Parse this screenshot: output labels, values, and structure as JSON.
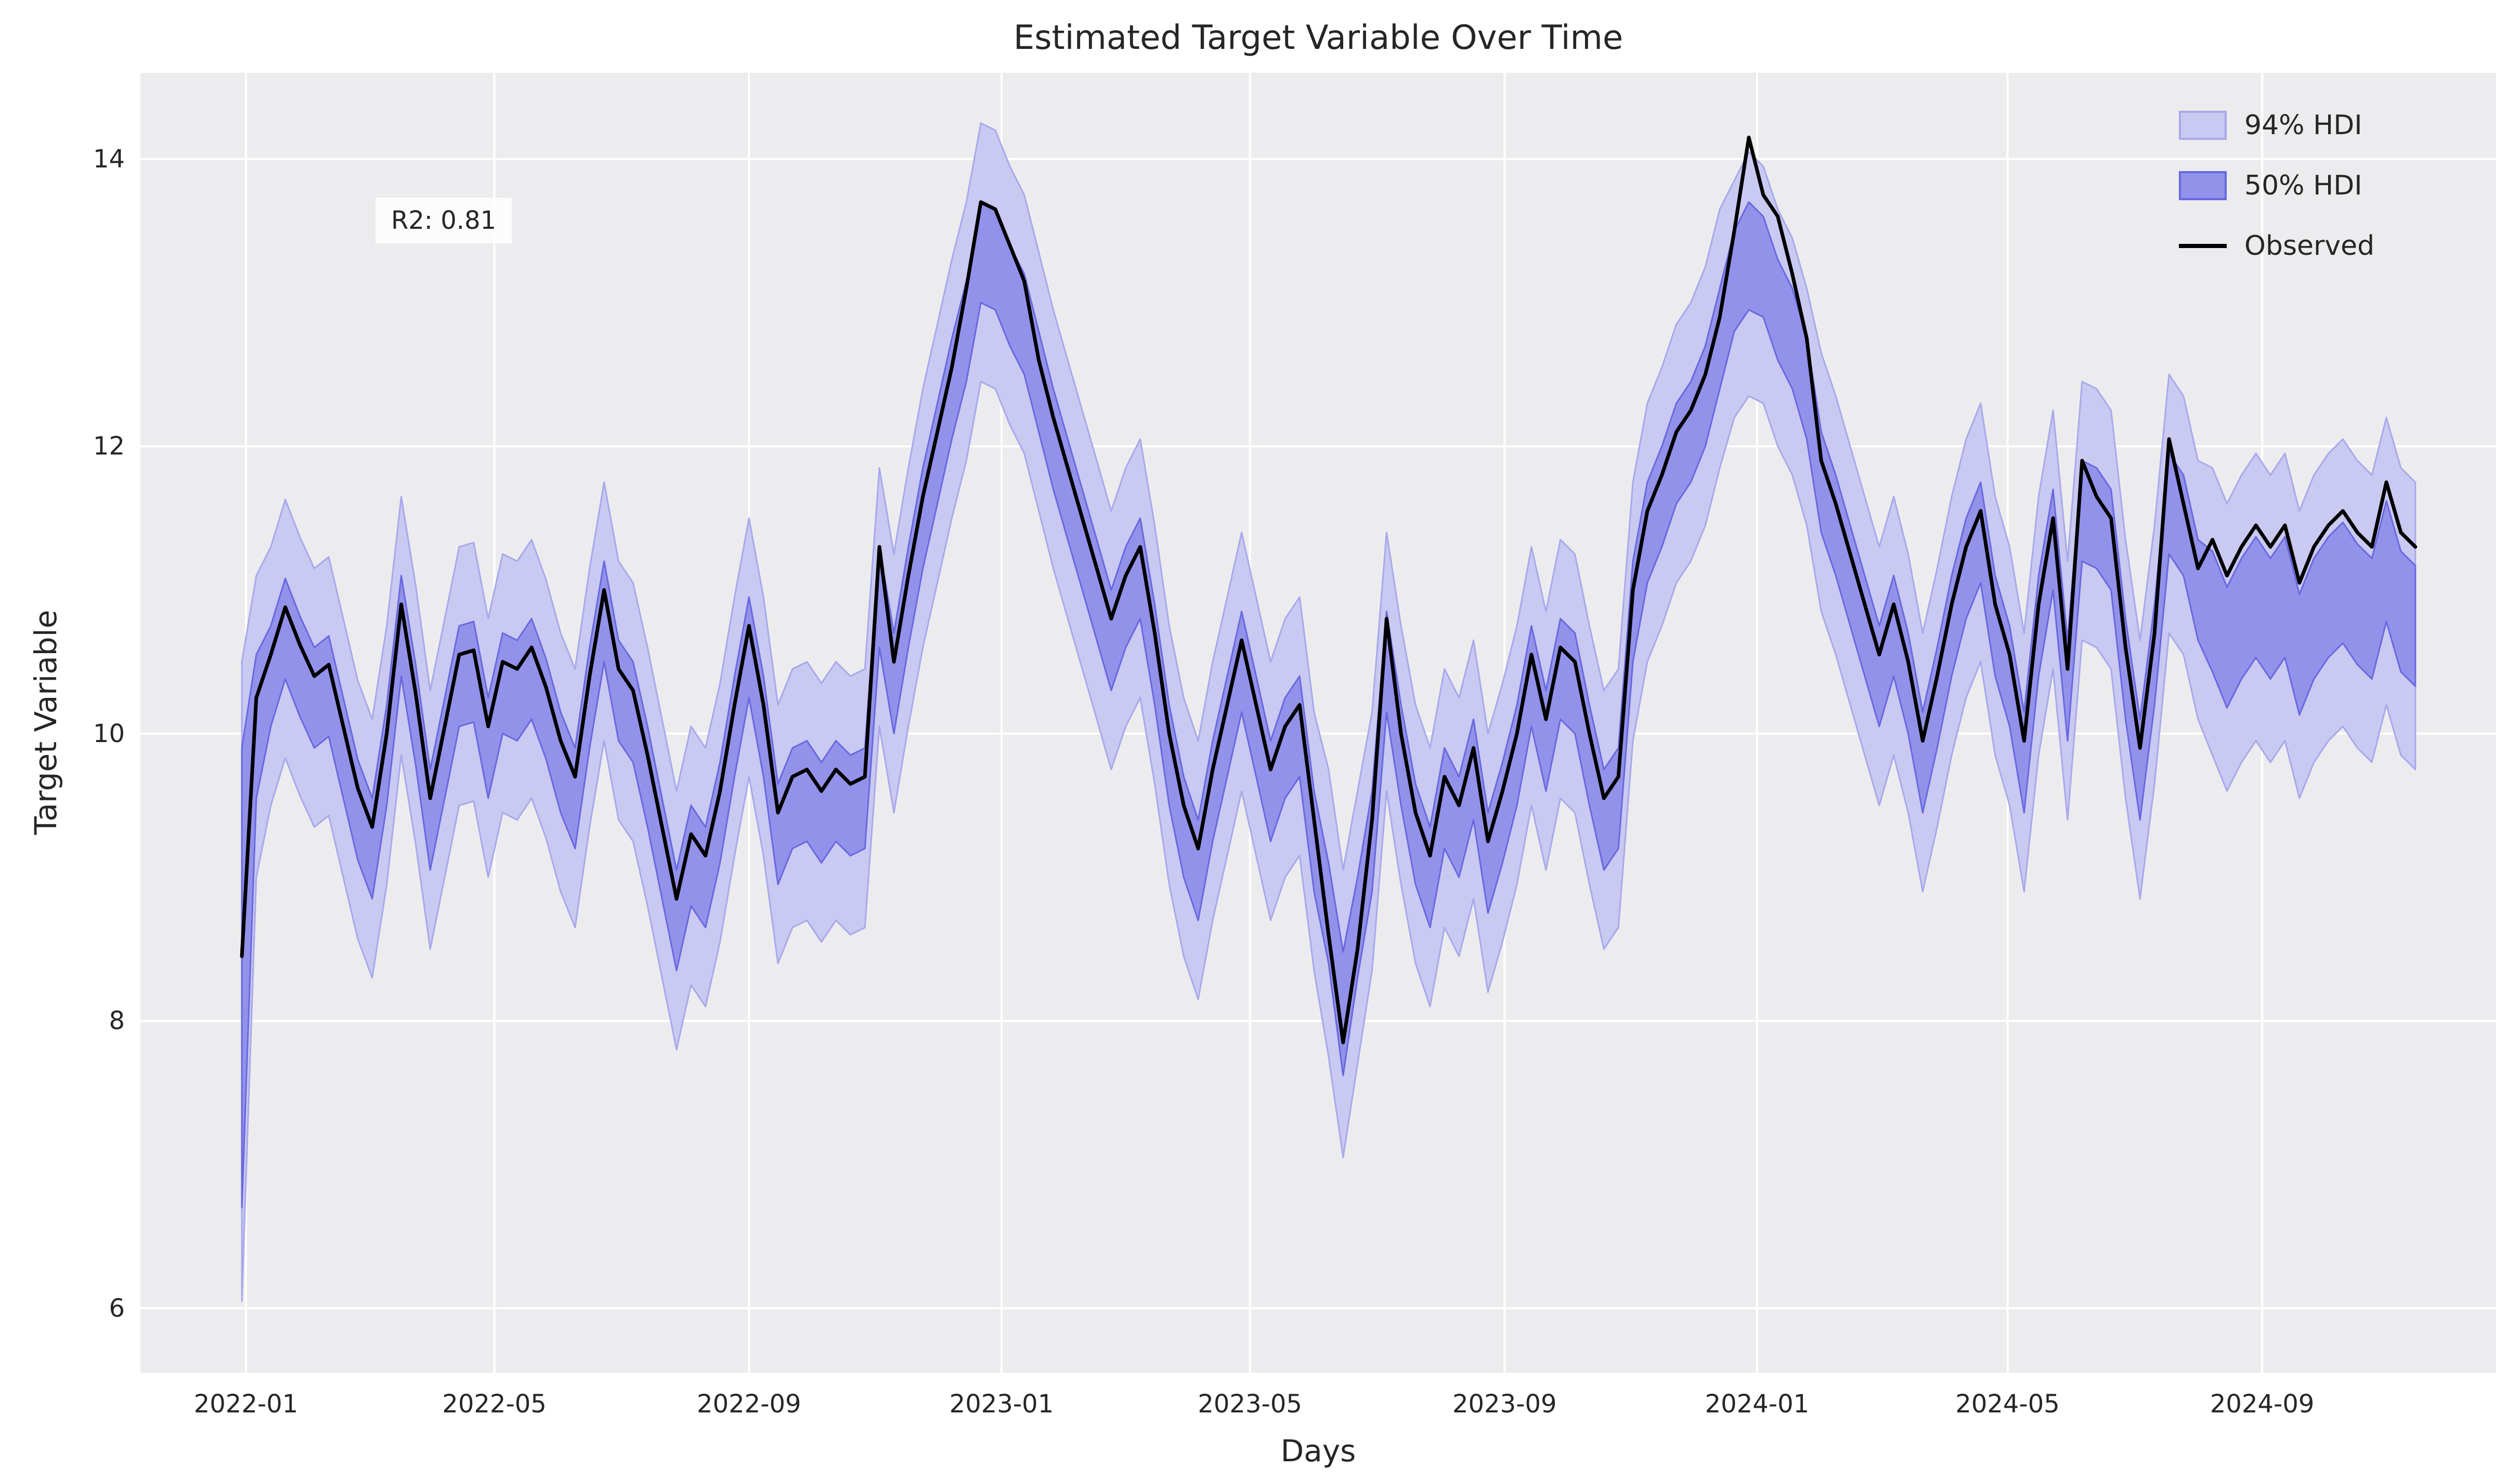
{
  "title": "Estimated Target Variable Over Time",
  "axes": {
    "xlabel": "Days",
    "ylabel": "Target Variable"
  },
  "annotation": {
    "r2_label": "R2: 0.81"
  },
  "legend": {
    "hdi94_label": "94% HDI",
    "hdi50_label": "50% HDI",
    "observed_label": "Observed"
  },
  "colors": {
    "figure_bg": "#ffffff",
    "axes_bg": "#ececee",
    "grid": "#ffffff",
    "text": "#262626",
    "hdi94_fill": "#c9c9f1",
    "hdi94_edge": "#a8a8ec",
    "hdi50_fill": "#9292ea",
    "hdi50_edge": "#6868e0",
    "observed": "#000000",
    "r2_box_bg": "rgba(255,255,255,0.85)"
  },
  "chart_data": {
    "type": "line",
    "title": "Estimated Target Variable Over Time",
    "xlabel": "Days",
    "ylabel": "Target Variable",
    "grid": true,
    "legend_position": "upper right",
    "ylim": [
      5.55,
      14.6
    ],
    "xlim_dates": [
      "2021-11-11",
      "2024-12-23"
    ],
    "yticks": [
      6,
      8,
      10,
      12,
      14
    ],
    "xticks": [
      {
        "label": "2022-01",
        "date": "2022-01-01"
      },
      {
        "label": "2022-05",
        "date": "2022-05-01"
      },
      {
        "label": "2022-09",
        "date": "2022-09-01"
      },
      {
        "label": "2023-01",
        "date": "2023-01-01"
      },
      {
        "label": "2023-05",
        "date": "2023-05-01"
      },
      {
        "label": "2023-09",
        "date": "2023-09-01"
      },
      {
        "label": "2024-01",
        "date": "2024-01-01"
      },
      {
        "label": "2024-05",
        "date": "2024-05-01"
      },
      {
        "label": "2024-09",
        "date": "2024-09-01"
      }
    ],
    "x": {
      "start_date": "2021-12-30",
      "step_days": 7,
      "count": 151
    },
    "series": [
      {
        "name": "Observed",
        "values": [
          8.45,
          10.25,
          10.55,
          10.88,
          10.62,
          10.4,
          10.48,
          10.05,
          9.62,
          9.35,
          10.0,
          10.9,
          10.28,
          9.55,
          10.05,
          10.55,
          10.58,
          10.05,
          10.5,
          10.45,
          10.6,
          10.32,
          9.95,
          9.7,
          10.4,
          11.0,
          10.45,
          10.3,
          9.85,
          9.35,
          8.85,
          9.3,
          9.15,
          9.6,
          10.2,
          10.75,
          10.2,
          9.45,
          9.7,
          9.75,
          9.6,
          9.75,
          9.65,
          9.7,
          11.3,
          10.5,
          11.1,
          11.65,
          12.1,
          12.55,
          13.1,
          13.7,
          13.65,
          13.4,
          13.15,
          12.6,
          12.2,
          11.85,
          11.5,
          11.15,
          10.8,
          11.1,
          11.3,
          10.7,
          10.0,
          9.5,
          9.2,
          9.75,
          10.2,
          10.65,
          10.2,
          9.75,
          10.05,
          10.2,
          9.4,
          8.6,
          7.85,
          8.5,
          9.4,
          10.8,
          10.0,
          9.45,
          9.15,
          9.7,
          9.5,
          9.9,
          9.25,
          9.6,
          10.0,
          10.55,
          10.1,
          10.6,
          10.5,
          10.0,
          9.55,
          9.7,
          11.0,
          11.55,
          11.8,
          12.1,
          12.25,
          12.5,
          12.9,
          13.5,
          14.15,
          13.75,
          13.6,
          13.2,
          12.75,
          11.9,
          11.6,
          11.25,
          10.9,
          10.55,
          10.9,
          10.5,
          9.95,
          10.4,
          10.9,
          11.3,
          11.55,
          10.9,
          10.55,
          9.95,
          10.9,
          11.5,
          10.45,
          11.9,
          11.65,
          11.5,
          10.6,
          9.9,
          10.7,
          12.05,
          11.6,
          11.15,
          11.35,
          11.1,
          11.3,
          11.45,
          11.3,
          11.45,
          11.05,
          11.3,
          11.45,
          11.55,
          11.4,
          11.3,
          11.75,
          11.4,
          11.3
        ]
      },
      {
        "name": "94% HDI lower",
        "values": [
          6.05,
          9.0,
          9.5,
          9.83,
          9.57,
          9.35,
          9.43,
          9.0,
          8.57,
          8.3,
          8.95,
          9.85,
          9.23,
          8.5,
          9.0,
          9.5,
          9.53,
          9.0,
          9.45,
          9.4,
          9.55,
          9.27,
          8.9,
          8.65,
          9.35,
          9.95,
          9.4,
          9.25,
          8.8,
          8.3,
          7.8,
          8.25,
          8.1,
          8.55,
          9.15,
          9.7,
          9.15,
          8.4,
          8.65,
          8.7,
          8.55,
          8.7,
          8.6,
          8.65,
          10.05,
          9.45,
          10.05,
          10.6,
          11.05,
          11.5,
          11.9,
          12.45,
          12.4,
          12.15,
          11.95,
          11.55,
          11.15,
          10.8,
          10.45,
          10.1,
          9.75,
          10.05,
          10.25,
          9.65,
          8.95,
          8.45,
          8.15,
          8.7,
          9.15,
          9.6,
          9.15,
          8.7,
          9.0,
          9.15,
          8.35,
          7.75,
          7.05,
          7.7,
          8.35,
          9.6,
          8.95,
          8.4,
          8.1,
          8.65,
          8.45,
          8.85,
          8.2,
          8.55,
          8.95,
          9.5,
          9.05,
          9.55,
          9.45,
          8.95,
          8.5,
          8.65,
          9.95,
          10.5,
          10.75,
          11.05,
          11.2,
          11.45,
          11.85,
          12.2,
          12.35,
          12.3,
          12.0,
          11.8,
          11.45,
          10.85,
          10.55,
          10.2,
          9.85,
          9.5,
          9.85,
          9.45,
          8.9,
          9.35,
          9.85,
          10.25,
          10.5,
          9.85,
          9.5,
          8.9,
          9.85,
          10.45,
          9.4,
          10.65,
          10.6,
          10.45,
          9.55,
          8.85,
          9.65,
          10.7,
          10.55,
          10.1,
          9.85,
          9.6,
          9.8,
          9.95,
          9.8,
          9.95,
          9.55,
          9.8,
          9.95,
          10.05,
          9.9,
          9.8,
          10.2,
          9.85,
          9.75
        ]
      },
      {
        "name": "94% HDI upper",
        "values": [
          10.5,
          11.1,
          11.3,
          11.63,
          11.37,
          11.15,
          11.23,
          10.8,
          10.37,
          10.1,
          10.75,
          11.65,
          11.03,
          10.3,
          10.8,
          11.3,
          11.33,
          10.8,
          11.25,
          11.2,
          11.35,
          11.07,
          10.7,
          10.45,
          11.15,
          11.75,
          11.2,
          11.05,
          10.6,
          10.1,
          9.6,
          10.05,
          9.9,
          10.35,
          10.95,
          11.5,
          10.95,
          10.2,
          10.45,
          10.5,
          10.35,
          10.5,
          10.4,
          10.45,
          11.85,
          11.25,
          11.85,
          12.4,
          12.85,
          13.3,
          13.7,
          14.25,
          14.2,
          13.95,
          13.75,
          13.35,
          12.95,
          12.6,
          12.25,
          11.9,
          11.55,
          11.85,
          12.05,
          11.45,
          10.75,
          10.25,
          9.95,
          10.5,
          10.95,
          11.4,
          10.95,
          10.5,
          10.8,
          10.95,
          10.15,
          9.75,
          9.05,
          9.6,
          10.15,
          11.4,
          10.75,
          10.2,
          9.9,
          10.45,
          10.25,
          10.65,
          10.0,
          10.35,
          10.75,
          11.3,
          10.85,
          11.35,
          11.25,
          10.75,
          10.3,
          10.45,
          11.75,
          12.3,
          12.55,
          12.85,
          13.0,
          13.25,
          13.65,
          13.85,
          14.05,
          13.95,
          13.65,
          13.45,
          13.1,
          12.65,
          12.35,
          12.0,
          11.65,
          11.3,
          11.65,
          11.25,
          10.7,
          11.15,
          11.65,
          12.05,
          12.3,
          11.65,
          11.3,
          10.7,
          11.65,
          12.25,
          11.2,
          12.45,
          12.4,
          12.25,
          11.35,
          10.65,
          11.45,
          12.5,
          12.35,
          11.9,
          11.85,
          11.6,
          11.8,
          11.95,
          11.8,
          11.95,
          11.55,
          11.8,
          11.95,
          12.05,
          11.9,
          11.8,
          12.2,
          11.85,
          11.75
        ]
      },
      {
        "name": "50% HDI lower",
        "values": [
          6.7,
          9.55,
          10.05,
          10.38,
          10.12,
          9.9,
          9.98,
          9.55,
          9.12,
          8.85,
          9.5,
          10.4,
          9.78,
          9.05,
          9.55,
          10.05,
          10.08,
          9.55,
          10.0,
          9.95,
          10.1,
          9.82,
          9.45,
          9.2,
          9.9,
          10.5,
          9.95,
          9.8,
          9.35,
          8.85,
          8.35,
          8.8,
          8.65,
          9.1,
          9.7,
          10.25,
          9.7,
          8.95,
          9.2,
          9.25,
          9.1,
          9.25,
          9.15,
          9.2,
          10.6,
          10.0,
          10.6,
          11.15,
          11.6,
          12.05,
          12.45,
          13.0,
          12.95,
          12.7,
          12.5,
          12.1,
          11.7,
          11.35,
          11.0,
          10.65,
          10.3,
          10.6,
          10.8,
          10.2,
          9.5,
          9.0,
          8.7,
          9.25,
          9.7,
          10.15,
          9.7,
          9.25,
          9.55,
          9.7,
          8.9,
          8.4,
          7.62,
          8.3,
          8.9,
          10.15,
          9.5,
          8.95,
          8.65,
          9.2,
          9.0,
          9.4,
          8.75,
          9.1,
          9.5,
          10.05,
          9.6,
          10.1,
          10.0,
          9.5,
          9.05,
          9.2,
          10.5,
          11.05,
          11.3,
          11.6,
          11.75,
          12.0,
          12.4,
          12.8,
          12.95,
          12.9,
          12.6,
          12.4,
          12.05,
          11.4,
          11.1,
          10.75,
          10.4,
          10.05,
          10.4,
          10.0,
          9.45,
          9.9,
          10.4,
          10.8,
          11.05,
          10.4,
          10.05,
          9.45,
          10.4,
          11.0,
          9.95,
          11.2,
          11.15,
          11.0,
          10.1,
          9.4,
          10.2,
          11.25,
          11.1,
          10.65,
          10.43,
          10.18,
          10.38,
          10.53,
          10.38,
          10.53,
          10.13,
          10.38,
          10.53,
          10.63,
          10.48,
          10.38,
          10.78,
          10.43,
          10.33
        ]
      },
      {
        "name": "50% HDI upper",
        "values": [
          9.9,
          10.55,
          10.75,
          11.08,
          10.82,
          10.6,
          10.68,
          10.25,
          9.82,
          9.55,
          10.2,
          11.1,
          10.48,
          9.75,
          10.25,
          10.75,
          10.78,
          10.25,
          10.7,
          10.65,
          10.8,
          10.52,
          10.15,
          9.9,
          10.6,
          11.2,
          10.65,
          10.5,
          10.05,
          9.55,
          9.05,
          9.5,
          9.35,
          9.8,
          10.4,
          10.95,
          10.4,
          9.65,
          9.9,
          9.95,
          9.8,
          9.95,
          9.85,
          9.9,
          11.3,
          10.7,
          11.3,
          11.85,
          12.3,
          12.75,
          13.15,
          13.7,
          13.65,
          13.4,
          13.2,
          12.8,
          12.4,
          12.05,
          11.7,
          11.35,
          11.0,
          11.3,
          11.5,
          10.9,
          10.2,
          9.7,
          9.4,
          9.95,
          10.4,
          10.85,
          10.4,
          9.95,
          10.25,
          10.4,
          9.6,
          9.1,
          8.48,
          9.0,
          9.6,
          10.85,
          10.2,
          9.65,
          9.35,
          9.9,
          9.7,
          10.1,
          9.45,
          9.8,
          10.2,
          10.75,
          10.3,
          10.8,
          10.7,
          10.2,
          9.75,
          9.9,
          11.2,
          11.75,
          12.0,
          12.3,
          12.45,
          12.7,
          13.1,
          13.5,
          13.7,
          13.6,
          13.3,
          13.1,
          12.75,
          12.1,
          11.8,
          11.45,
          11.1,
          10.75,
          11.1,
          10.7,
          10.15,
          10.6,
          11.1,
          11.5,
          11.75,
          11.1,
          10.75,
          10.15,
          11.1,
          11.7,
          10.65,
          11.9,
          11.85,
          11.7,
          10.8,
          10.1,
          10.9,
          11.95,
          11.8,
          11.35,
          11.27,
          11.02,
          11.22,
          11.37,
          11.22,
          11.37,
          10.97,
          11.22,
          11.37,
          11.47,
          11.32,
          11.22,
          11.62,
          11.27,
          11.17
        ]
      }
    ]
  }
}
